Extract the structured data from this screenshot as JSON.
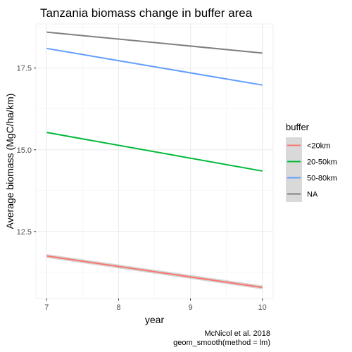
{
  "chart_data": {
    "type": "line",
    "title": "Tanzania biomass change in buffer area",
    "xlabel": "year",
    "ylabel": "Average biomass (MgC/ha/km)",
    "xlim": [
      6.85,
      10.15
    ],
    "ylim": [
      10.45,
      18.85
    ],
    "x_ticks": [
      7,
      8,
      9,
      10
    ],
    "y_ticks": [
      12.5,
      15.0,
      17.5
    ],
    "x_tick_labels": [
      "7",
      "8",
      "9",
      "10"
    ],
    "y_tick_labels": [
      "12.5",
      "15.0",
      "17.5"
    ],
    "grid": true,
    "legend_position": "right",
    "legend_title": "buffer",
    "series": [
      {
        "name": "<20km",
        "x": [
          7,
          10
        ],
        "y": [
          11.75,
          10.79
        ],
        "color": "#F8766D",
        "ci": 0.06
      },
      {
        "name": "20-50km",
        "x": [
          7,
          10
        ],
        "y": [
          15.53,
          14.35
        ],
        "color": "#00BA38"
      },
      {
        "name": "50-80km",
        "x": [
          7,
          10
        ],
        "y": [
          18.1,
          16.98
        ],
        "color": "#619CFF"
      },
      {
        "name": "NA",
        "x": [
          7,
          10
        ],
        "y": [
          18.6,
          17.96
        ],
        "color": "#7F7F7F"
      }
    ],
    "caption": [
      "McNicol et al. 2018",
      "geom_smooth(method = lm)"
    ]
  }
}
